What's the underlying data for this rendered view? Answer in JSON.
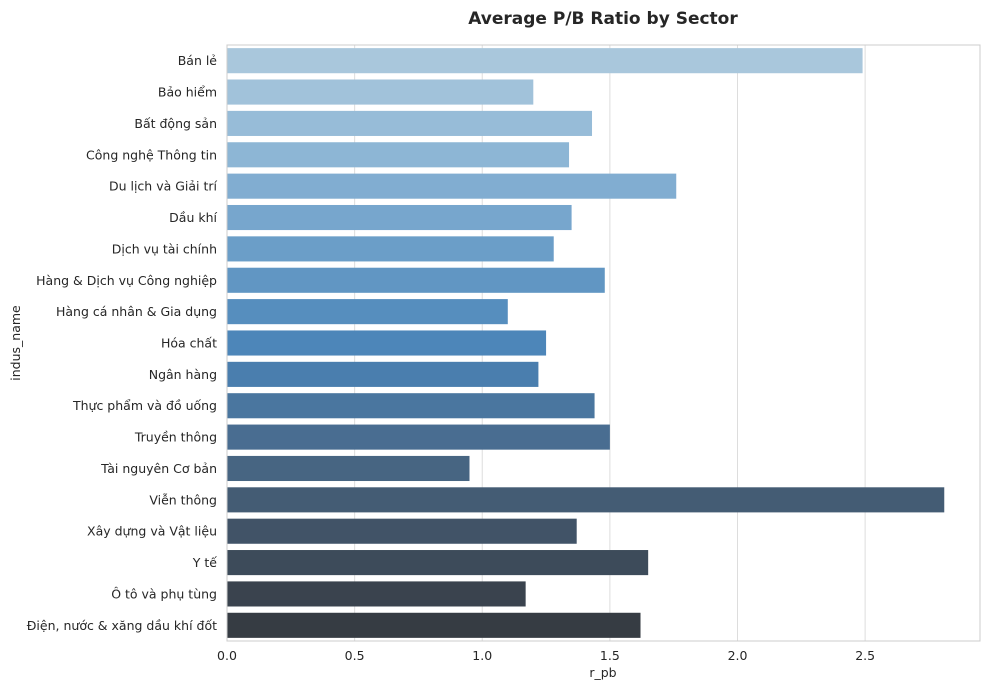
{
  "chart_data": {
    "type": "bar",
    "orientation": "horizontal",
    "title": "Average P/B Ratio by Sector",
    "xlabel": "r_pb",
    "ylabel": "indus_name",
    "xlim": [
      0,
      2.95
    ],
    "xticks": [
      "0.0",
      "0.5",
      "1.0",
      "1.5",
      "2.0",
      "2.5"
    ],
    "grid": true,
    "categories": [
      "Bán lẻ",
      "Bảo hiểm",
      "Bất động sản",
      "Công nghệ Thông tin",
      "Du lịch và Giải trí",
      "Dầu khí",
      "Dịch vụ tài chính",
      "Hàng & Dịch vụ Công nghiệp",
      "Hàng cá nhân & Gia dụng",
      "Hóa chất",
      "Ngân hàng",
      "Thực phẩm và đồ uống",
      "Truyền thông",
      "Tài nguyên Cơ bản",
      "Viễn thông",
      "Xây dựng và Vật liệu",
      "Y tế",
      "Ô tô và phụ tùng",
      "Điện, nước & xăng dầu khí đốt"
    ],
    "values": [
      2.49,
      1.2,
      1.43,
      1.34,
      1.76,
      1.35,
      1.28,
      1.48,
      1.1,
      1.25,
      1.22,
      1.44,
      1.5,
      0.95,
      2.81,
      1.37,
      1.65,
      1.17,
      1.62
    ],
    "colors": [
      "#a9c7dc",
      "#a1c2da",
      "#97bcd8",
      "#8db6d5",
      "#81add1",
      "#77a6cd",
      "#6b9ec8",
      "#6196c3",
      "#568ebe",
      "#4d86b9",
      "#4a7eae",
      "#4a769f",
      "#496d91",
      "#476582",
      "#445c74",
      "#415367",
      "#3d4b5a",
      "#3a434e",
      "#363c43"
    ]
  }
}
